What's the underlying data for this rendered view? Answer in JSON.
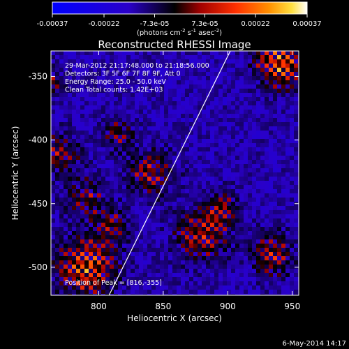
{
  "chart_data": {
    "type": "heatmap",
    "title": "Reconstructed RHESSI Image",
    "xlabel": "Heliocentric X (arcsec)",
    "ylabel": "Heliocentric Y (arcsec)",
    "xlim": [
      763,
      955
    ],
    "ylim": [
      -522,
      -330
    ],
    "x_ticks": [
      800,
      850,
      900,
      950
    ],
    "x_tick_labels": [
      "800",
      "850",
      "900",
      "950"
    ],
    "y_ticks": [
      -500,
      -450,
      -400,
      -350
    ],
    "y_tick_labels": [
      "-500",
      "-450",
      "-400",
      "-350"
    ],
    "colorbar": {
      "min": -0.00037,
      "max": 0.00037,
      "tick_labels": [
        "-0.00037",
        "-0.00022",
        "-7.3e-05",
        "7.3e-05",
        "0.00022",
        "0.00037"
      ],
      "unit_label_base": "(photons cm",
      "unit_label_sup1": "-2",
      "unit_label_mid1": " s",
      "unit_label_sup2": "-1",
      "unit_label_mid2": " asec",
      "unit_label_sup3": "-2",
      "unit_label_end": ")",
      "colormap": [
        "#0000ff",
        "#2a00c8",
        "#000000",
        "#a00000",
        "#ff3000",
        "#ff9000",
        "#ffe040",
        "#ffffff"
      ]
    },
    "annotations": [
      "29-Mar-2012 21:17:48.000 to 21:18:56.000",
      "Detectors: 3F 5F 6F 7F 8F 9F, Att 0",
      "Energy Range: 25.0 - 50.0 keV",
      "Clean    Total counts: 1.42E+03",
      "Position of Peak = [816,-355]"
    ],
    "limb_line": {
      "x": [
        808,
        902
      ],
      "y": [
        -522,
        -330
      ]
    },
    "grid": false
  },
  "footer": {
    "date": "6-May-2014 14:17"
  }
}
